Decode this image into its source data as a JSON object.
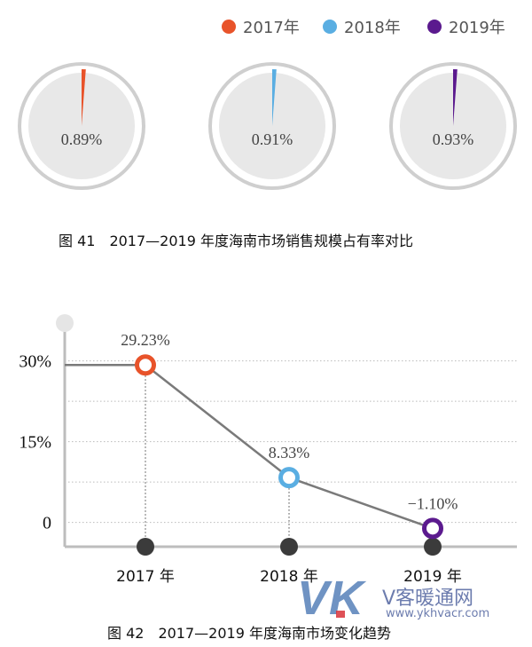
{
  "pie_figure": {
    "caption": "图 41　2017—2019 年度海南市场销售规模占有率对比",
    "legend": [
      {
        "label": "2017年",
        "color": "#e8532a"
      },
      {
        "label": "2018年",
        "color": "#5aaee2"
      },
      {
        "label": "2019年",
        "color": "#5b1a8e"
      }
    ]
  },
  "line_figure": {
    "caption": "图 42　2017—2019 年度海南市场变化趋势"
  },
  "watermark": {
    "brand": "V客暖通网",
    "url": "www.ykhvacr.com"
  },
  "chart_data": [
    {
      "type": "pie",
      "title": "图 41　2017—2019 年度海南市场销售规模占有率对比",
      "categories": [
        "2017年",
        "2018年",
        "2019年"
      ],
      "values": [
        0.89,
        0.91,
        0.93
      ],
      "labels": [
        "0.89%",
        "0.91%",
        "0.93%"
      ],
      "colors": [
        "#e8532a",
        "#5aaee2",
        "#5b1a8e"
      ],
      "legend": "top-right"
    },
    {
      "type": "line",
      "title": "图 42　2017—2019 年度海南市场变化趋势",
      "categories": [
        "2017 年",
        "2018 年",
        "2019 年"
      ],
      "values": [
        29.23,
        8.33,
        -1.1
      ],
      "labels": [
        "29.23%",
        "8.33%",
        "−1.10%"
      ],
      "colors": [
        "#e8532a",
        "#5aaee2",
        "#5b1a8e"
      ],
      "yticks": [
        "30%",
        "15%",
        "0"
      ],
      "ytick_values": [
        30,
        15,
        0
      ],
      "ylim": [
        -4.5,
        38
      ],
      "grid": true
    }
  ]
}
